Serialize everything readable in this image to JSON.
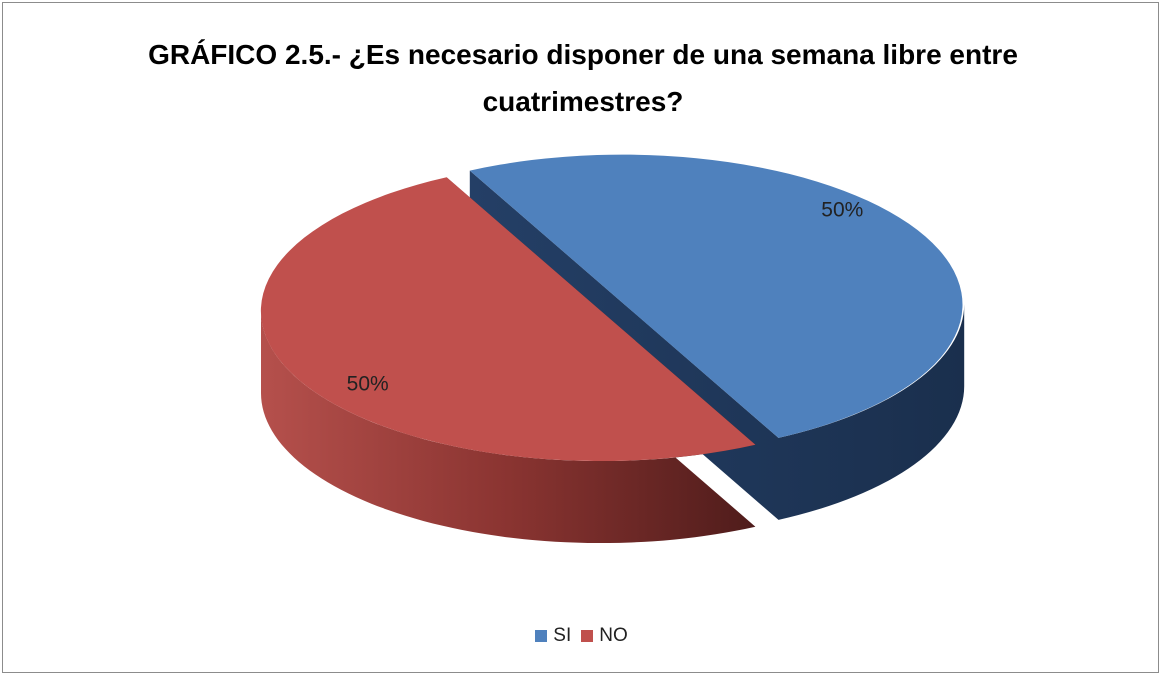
{
  "chart_data": {
    "type": "pie",
    "title": "GRÁFICO 2.5.- ¿Es necesario disponer de una semana libre entre cuatrimestres?",
    "categories": [
      "SI",
      "NO"
    ],
    "values": [
      50,
      50
    ],
    "value_labels": [
      "50%",
      "50%"
    ],
    "colors": [
      "#4f81bd",
      "#c0504d"
    ],
    "legend": "bottom"
  }
}
